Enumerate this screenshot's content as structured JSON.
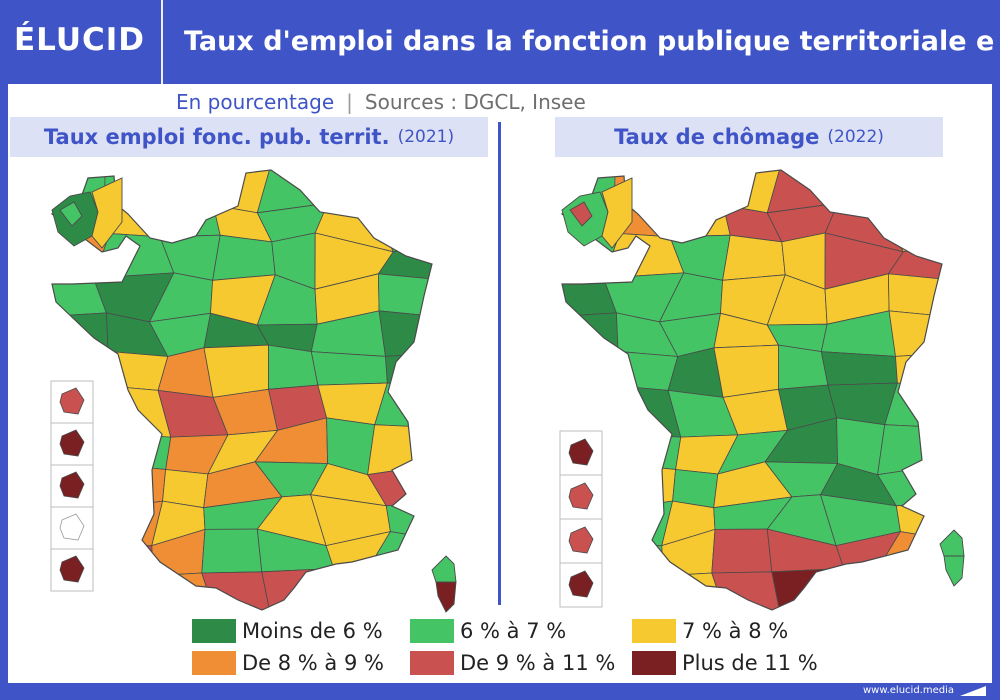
{
  "header": {
    "logo": "ÉLUCID",
    "title": "Taux d'emploi dans la fonction publique territoriale e"
  },
  "subtitle": {
    "unit": "En pourcentage",
    "separator": "|",
    "sources": "Sources : DGCL, Insee"
  },
  "panels": {
    "left": {
      "title": "Taux emploi fonc. pub. territ.",
      "year": "(2021)"
    },
    "right": {
      "title": "Taux de chômage",
      "year": "(2022)"
    }
  },
  "legend": [
    {
      "label": "Moins de 6 %",
      "color": "#2e8b47"
    },
    {
      "label": "6 % à 7 %",
      "color": "#45c466"
    },
    {
      "label": "7 % à 8 %",
      "color": "#f6c930"
    },
    {
      "label": "De 8 % à 9  %",
      "color": "#f08e35"
    },
    {
      "label": "De 9 % à 11 %",
      "color": "#c9514f"
    },
    {
      "label": "Plus de 11 %",
      "color": "#7a1f22"
    }
  ],
  "footer": {
    "url": "www.elucid.media"
  },
  "colors": {
    "brand": "#3f55c7",
    "panel_title_bg": "#dde1f5",
    "border": "#4a4a4a"
  },
  "maps": {
    "left": {
      "dom_tom": [
        "c4",
        "c5",
        "c5",
        "empty",
        "c5"
      ]
    },
    "right": {
      "dom_tom": [
        "c5",
        "c4",
        "c4",
        "c5"
      ]
    }
  }
}
